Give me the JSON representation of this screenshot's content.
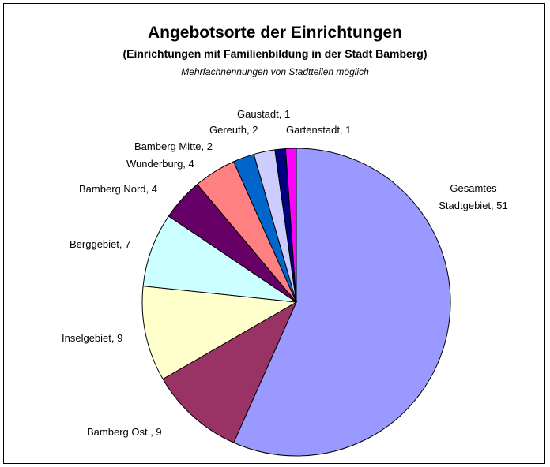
{
  "chart_data": {
    "type": "pie",
    "title": "Angebotsorte der Einrichtungen",
    "subtitle": "(Einrichtungen mit Familienbildung in der Stadt Bamberg)",
    "note": "Mehrfachnennungen von Stadtteilen möglich",
    "categories": [
      "Gesamtes Stadtgebiet, 51",
      "Bamberg Ost , 9",
      "Inselgebiet, 9",
      "Berggebiet, 7",
      "Bamberg Nord, 4",
      "Wunderburg, 4",
      "Bamberg Mitte, 2",
      "Gereuth, 2",
      "Gaustadt, 1",
      "Gartenstadt, 1"
    ],
    "values": [
      51,
      9,
      9,
      7,
      4,
      4,
      2,
      2,
      1,
      1
    ],
    "colors": [
      "#9999ff",
      "#993366",
      "#ffffcc",
      "#ccffff",
      "#660066",
      "#ff8080",
      "#0066cc",
      "#ccccff",
      "#000080",
      "#ff00ff"
    ]
  }
}
